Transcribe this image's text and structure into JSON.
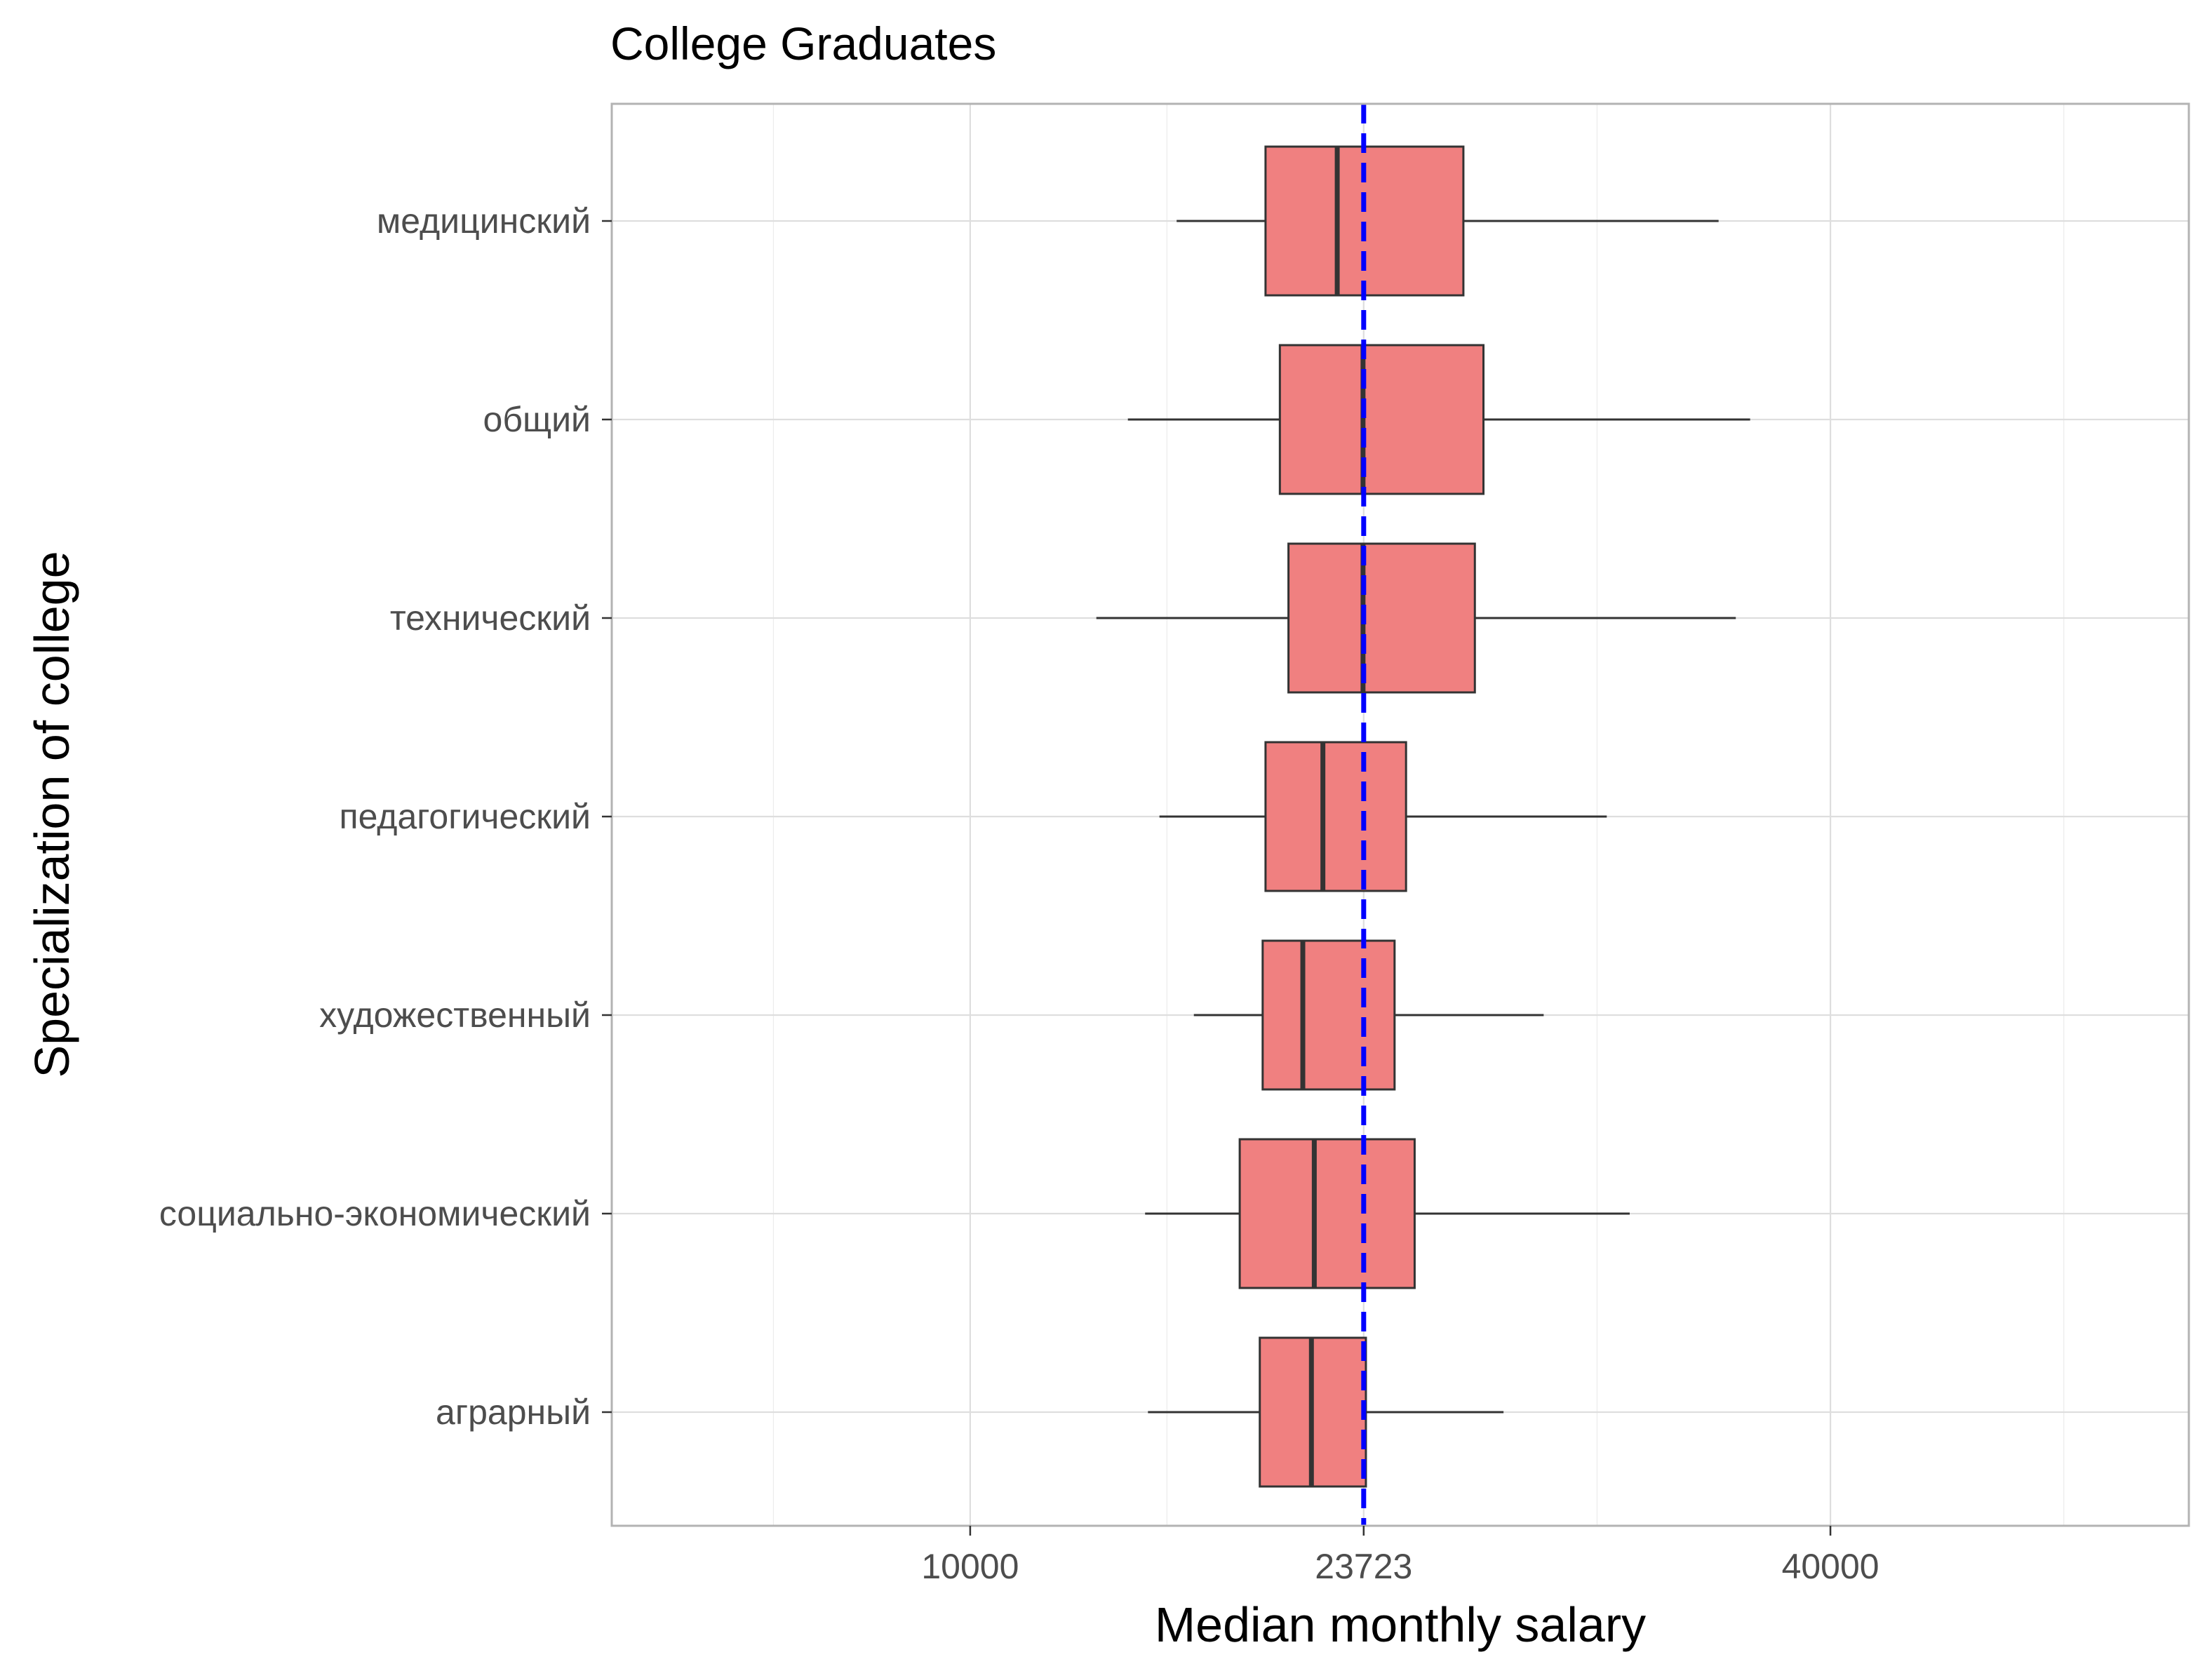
{
  "chart_data": {
    "type": "boxplot",
    "orientation": "horizontal",
    "title": "College Graduates",
    "xlabel": "Median monthly salary",
    "ylabel": "Specialization of college",
    "x_ticks": [
      {
        "value": 10000,
        "label": "10000"
      },
      {
        "value": 23723,
        "label": "23723"
      },
      {
        "value": 40000,
        "label": "40000"
      }
    ],
    "x_domain": [
      -2500,
      52500
    ],
    "categories": [
      "медицинский",
      "общий",
      "технический",
      "педагогический",
      "художественный",
      "социально-экономический",
      "аграрный"
    ],
    "boxes": [
      {
        "category": "медицинский",
        "whisker_low": 17200,
        "q1": 20300,
        "median": 22800,
        "q3": 27200,
        "whisker_high": 36100
      },
      {
        "category": "общий",
        "whisker_low": 15500,
        "q1": 20800,
        "median": 23700,
        "q3": 27900,
        "whisker_high": 37200
      },
      {
        "category": "технический",
        "whisker_low": 14400,
        "q1": 21100,
        "median": 23700,
        "q3": 27600,
        "whisker_high": 36700
      },
      {
        "category": "педагогический",
        "whisker_low": 16600,
        "q1": 20300,
        "median": 22300,
        "q3": 25200,
        "whisker_high": 32200
      },
      {
        "category": "художественный",
        "whisker_low": 17800,
        "q1": 20200,
        "median": 21600,
        "q3": 24800,
        "whisker_high": 30000
      },
      {
        "category": "социально-экономический",
        "whisker_low": 16100,
        "q1": 19400,
        "median": 22000,
        "q3": 25500,
        "whisker_high": 33000
      },
      {
        "category": "аграрный",
        "whisker_low": 16200,
        "q1": 20100,
        "median": 21900,
        "q3": 23800,
        "whisker_high": 28600
      }
    ],
    "reference_line": {
      "value": 23723,
      "style": "dashed",
      "color": "#0000ff"
    },
    "colors": {
      "box_fill": "#f08080",
      "box_stroke": "#333333",
      "grid": "#dedede",
      "panel_border": "#b3b3b3"
    },
    "grid": true,
    "legend": "none"
  }
}
